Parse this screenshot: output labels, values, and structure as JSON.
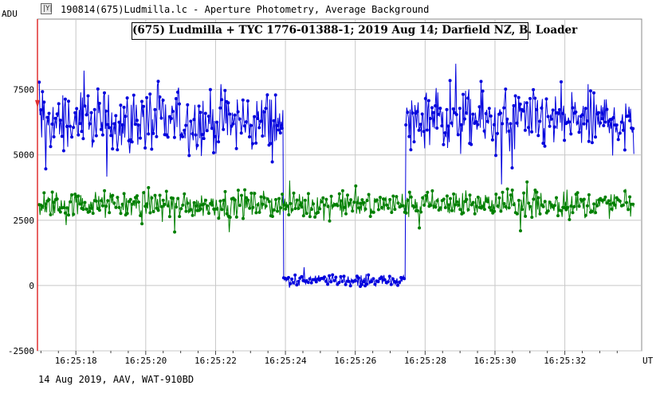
{
  "window": {
    "title": "190814(675)Ludmilla.lc - Aperture Photometry, Average Background",
    "icon": "lightcurve-app-icon"
  },
  "footer": {
    "text": "14 Aug 2019, AAV, WAT-910BD"
  },
  "chart_data": {
    "type": "line",
    "title": "(675) Ludmilla + TYC 1776-01388-1;  2019 Aug 14;  Darfield NZ, B. Loader",
    "ylabel": "ADU",
    "xlabel": "UT",
    "y_ticks": [
      -2500,
      0,
      2500,
      5000,
      7500
    ],
    "ylim": [
      -2500,
      10200
    ],
    "x_ticks": [
      "16:25:18",
      "16:25:20",
      "16:25:22",
      "16:25:24",
      "16:25:26",
      "16:25:28",
      "16:25:30",
      "16:25:32"
    ],
    "xlim_seconds_after_16_25_00": [
      16.9,
      34.2
    ],
    "grid": true,
    "event_marker_color": "#e03030",
    "series": [
      {
        "color": "#0000dd",
        "segments": [
          {
            "x_start": 16.95,
            "x_end": 23.95,
            "mean": 6250,
            "spread": 1300,
            "n": 300
          },
          {
            "x_start": 23.95,
            "x_end": 27.45,
            "mean": 200,
            "spread": 230,
            "n": 150
          },
          {
            "x_start": 27.45,
            "x_end": 34.0,
            "mean": 6300,
            "spread": 1300,
            "n": 280
          }
        ]
      },
      {
        "color": "#008000",
        "segments": [
          {
            "x_start": 16.95,
            "x_end": 34.0,
            "mean": 3100,
            "spread": 550,
            "n": 730
          }
        ]
      }
    ]
  }
}
